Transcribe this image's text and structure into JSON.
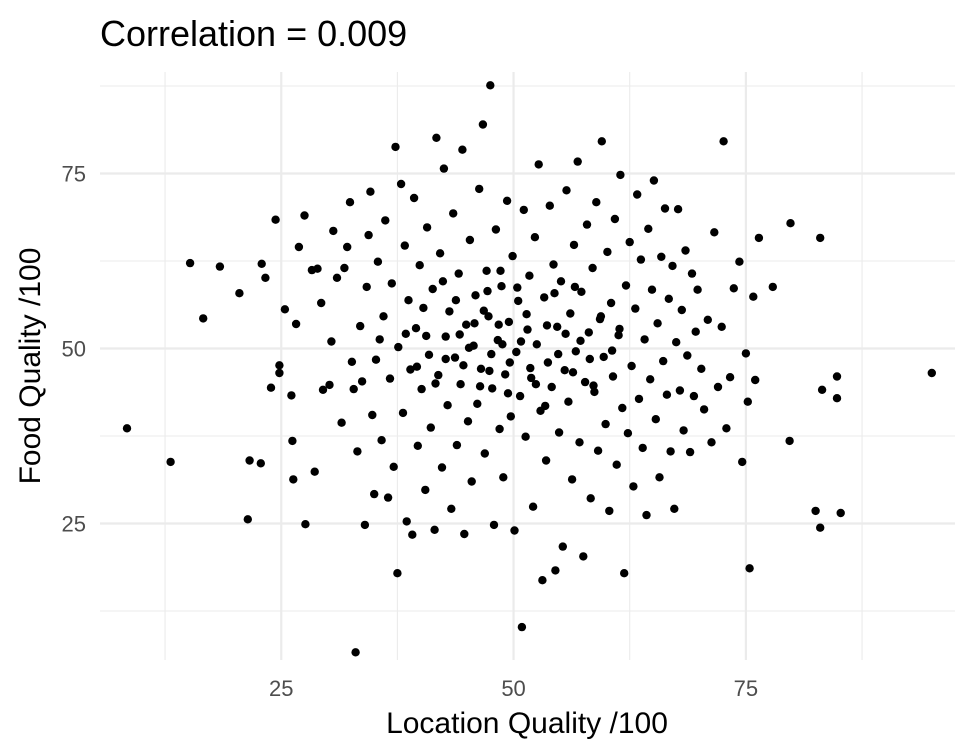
{
  "chart_data": {
    "type": "scatter",
    "title": "Correlation = 0.009",
    "xlabel": "Location Quality /100",
    "ylabel": "Food Quality /100",
    "xlim": [
      5.5,
      97.5
    ],
    "ylim": [
      5.5,
      89.5
    ],
    "x_ticks": [
      25,
      50,
      75
    ],
    "y_ticks": [
      25,
      50,
      75
    ],
    "x_tick_labels": [
      "25",
      "50",
      "75"
    ],
    "y_tick_labels": [
      "25",
      "50",
      "75"
    ],
    "x_minor": [
      12.5,
      37.5,
      62.5,
      87.5
    ],
    "y_minor": [
      12.5,
      37.5,
      62.5,
      87.5
    ],
    "grid": true,
    "theme": "minimal",
    "point_color": "#000000",
    "grid_color": "#ebebeb",
    "series": [
      {
        "points": [
          [
            8.4,
            38.6
          ],
          [
            13.1,
            33.8
          ],
          [
            15.2,
            62.2
          ],
          [
            16.6,
            54.3
          ],
          [
            18.4,
            61.7
          ],
          [
            20.5,
            57.9
          ],
          [
            21.4,
            25.6
          ],
          [
            21.6,
            34.0
          ],
          [
            22.9,
            62.1
          ],
          [
            22.8,
            33.6
          ],
          [
            23.3,
            60.1
          ],
          [
            23.9,
            44.4
          ],
          [
            24.4,
            68.4
          ],
          [
            24.8,
            47.6
          ],
          [
            24.8,
            46.5
          ],
          [
            25.4,
            55.6
          ],
          [
            26.1,
            43.3
          ],
          [
            26.2,
            36.8
          ],
          [
            26.3,
            31.3
          ],
          [
            26.6,
            53.5
          ],
          [
            26.9,
            64.5
          ],
          [
            27.5,
            69.0
          ],
          [
            27.6,
            24.9
          ],
          [
            28.3,
            61.2
          ],
          [
            28.6,
            32.4
          ],
          [
            28.9,
            61.4
          ],
          [
            29.3,
            56.5
          ],
          [
            29.5,
            44.1
          ],
          [
            30.2,
            44.8
          ],
          [
            30.4,
            51.0
          ],
          [
            30.6,
            66.8
          ],
          [
            31.0,
            60.1
          ],
          [
            31.5,
            39.4
          ],
          [
            31.8,
            61.5
          ],
          [
            32.1,
            64.5
          ],
          [
            32.4,
            70.9
          ],
          [
            32.6,
            48.1
          ],
          [
            32.8,
            44.2
          ],
          [
            33.0,
            6.6
          ],
          [
            33.2,
            35.3
          ],
          [
            33.5,
            53.2
          ],
          [
            33.7,
            45.3
          ],
          [
            34.0,
            24.8
          ],
          [
            34.2,
            58.8
          ],
          [
            34.4,
            66.2
          ],
          [
            34.6,
            72.4
          ],
          [
            34.8,
            40.5
          ],
          [
            35.0,
            29.2
          ],
          [
            35.2,
            48.4
          ],
          [
            35.4,
            62.4
          ],
          [
            35.6,
            51.3
          ],
          [
            35.8,
            36.9
          ],
          [
            36.0,
            54.6
          ],
          [
            36.2,
            68.3
          ],
          [
            36.5,
            28.7
          ],
          [
            36.7,
            45.7
          ],
          [
            36.9,
            59.3
          ],
          [
            37.1,
            33.1
          ],
          [
            37.3,
            78.8
          ],
          [
            37.5,
            17.9
          ],
          [
            37.6,
            50.2
          ],
          [
            37.9,
            73.5
          ],
          [
            38.1,
            40.8
          ],
          [
            38.3,
            64.7
          ],
          [
            38.5,
            25.3
          ],
          [
            38.7,
            56.9
          ],
          [
            38.9,
            47.0
          ],
          [
            39.1,
            23.4
          ],
          [
            39.3,
            71.5
          ],
          [
            39.5,
            52.9
          ],
          [
            39.7,
            36.1
          ],
          [
            39.9,
            61.9
          ],
          [
            40.1,
            44.2
          ],
          [
            40.3,
            55.8
          ],
          [
            40.5,
            29.8
          ],
          [
            40.7,
            67.3
          ],
          [
            40.9,
            49.1
          ],
          [
            41.1,
            38.7
          ],
          [
            41.3,
            58.5
          ],
          [
            41.5,
            24.1
          ],
          [
            41.7,
            80.1
          ],
          [
            41.9,
            46.2
          ],
          [
            42.1,
            63.6
          ],
          [
            42.3,
            33.0
          ],
          [
            42.5,
            75.7
          ],
          [
            42.7,
            51.7
          ],
          [
            42.9,
            41.9
          ],
          [
            43.1,
            55.3
          ],
          [
            43.3,
            27.1
          ],
          [
            43.5,
            69.3
          ],
          [
            43.7,
            48.7
          ],
          [
            43.9,
            36.2
          ],
          [
            44.1,
            60.7
          ],
          [
            44.3,
            44.9
          ],
          [
            44.5,
            78.4
          ],
          [
            44.7,
            23.5
          ],
          [
            44.9,
            53.4
          ],
          [
            45.1,
            39.6
          ],
          [
            45.3,
            65.5
          ],
          [
            45.5,
            31.0
          ],
          [
            45.7,
            50.4
          ],
          [
            45.9,
            57.6
          ],
          [
            46.1,
            42.1
          ],
          [
            46.3,
            72.8
          ],
          [
            46.5,
            47.1
          ],
          [
            46.7,
            82.0
          ],
          [
            46.9,
            35.0
          ],
          [
            47.1,
            61.1
          ],
          [
            47.3,
            54.6
          ],
          [
            47.5,
            87.6
          ],
          [
            47.7,
            44.3
          ],
          [
            47.9,
            24.8
          ],
          [
            48.1,
            67.0
          ],
          [
            48.3,
            51.2
          ],
          [
            48.5,
            38.5
          ],
          [
            48.7,
            58.9
          ],
          [
            48.9,
            31.6
          ],
          [
            49.1,
            46.3
          ],
          [
            49.3,
            71.1
          ],
          [
            49.5,
            53.8
          ],
          [
            49.7,
            40.3
          ],
          [
            49.9,
            63.2
          ],
          [
            50.1,
            24.0
          ],
          [
            50.3,
            49.5
          ],
          [
            50.5,
            56.8
          ],
          [
            50.7,
            43.2
          ],
          [
            50.9,
            10.2
          ],
          [
            51.1,
            69.8
          ],
          [
            51.3,
            37.4
          ],
          [
            51.5,
            52.7
          ],
          [
            51.7,
            60.4
          ],
          [
            51.9,
            45.8
          ],
          [
            52.1,
            27.4
          ],
          [
            52.3,
            65.9
          ],
          [
            52.5,
            50.6
          ],
          [
            52.7,
            76.3
          ],
          [
            52.9,
            41.1
          ],
          [
            53.1,
            16.9
          ],
          [
            53.3,
            57.3
          ],
          [
            53.5,
            34.0
          ],
          [
            53.7,
            48.0
          ],
          [
            53.9,
            70.4
          ],
          [
            54.1,
            44.5
          ],
          [
            54.3,
            62.0
          ],
          [
            54.5,
            18.3
          ],
          [
            54.7,
            53.1
          ],
          [
            54.9,
            38.0
          ],
          [
            55.1,
            59.6
          ],
          [
            55.3,
            21.7
          ],
          [
            55.5,
            46.9
          ],
          [
            55.7,
            72.6
          ],
          [
            55.9,
            42.4
          ],
          [
            56.1,
            55.0
          ],
          [
            56.3,
            31.3
          ],
          [
            56.5,
            64.8
          ],
          [
            56.7,
            49.6
          ],
          [
            56.9,
            76.7
          ],
          [
            57.1,
            36.6
          ],
          [
            57.3,
            58.1
          ],
          [
            57.5,
            20.3
          ],
          [
            57.7,
            45.2
          ],
          [
            57.9,
            67.7
          ],
          [
            58.1,
            52.3
          ],
          [
            58.3,
            28.6
          ],
          [
            58.5,
            61.5
          ],
          [
            58.7,
            43.8
          ],
          [
            58.9,
            70.9
          ],
          [
            59.1,
            35.4
          ],
          [
            59.3,
            54.2
          ],
          [
            59.5,
            79.6
          ],
          [
            59.7,
            48.8
          ],
          [
            59.9,
            39.2
          ],
          [
            60.1,
            63.8
          ],
          [
            60.3,
            26.8
          ],
          [
            60.5,
            56.5
          ],
          [
            60.7,
            46.0
          ],
          [
            60.9,
            68.5
          ],
          [
            61.1,
            33.4
          ],
          [
            61.3,
            51.9
          ],
          [
            61.5,
            74.8
          ],
          [
            61.7,
            41.5
          ],
          [
            61.9,
            17.9
          ],
          [
            62.1,
            59.0
          ],
          [
            62.3,
            37.9
          ],
          [
            62.5,
            65.2
          ],
          [
            62.7,
            47.5
          ],
          [
            62.9,
            30.3
          ],
          [
            63.1,
            55.7
          ],
          [
            63.3,
            72.0
          ],
          [
            63.5,
            42.8
          ],
          [
            63.7,
            62.7
          ],
          [
            63.9,
            35.8
          ],
          [
            64.1,
            51.3
          ],
          [
            64.3,
            26.2
          ],
          [
            64.5,
            67.1
          ],
          [
            64.7,
            45.6
          ],
          [
            64.9,
            58.4
          ],
          [
            65.1,
            74.0
          ],
          [
            65.3,
            39.9
          ],
          [
            65.5,
            53.6
          ],
          [
            65.7,
            31.6
          ],
          [
            65.9,
            63.1
          ],
          [
            66.1,
            48.2
          ],
          [
            66.3,
            70.0
          ],
          [
            66.5,
            43.4
          ],
          [
            66.7,
            57.1
          ],
          [
            66.9,
            35.3
          ],
          [
            67.1,
            61.8
          ],
          [
            67.3,
            27.1
          ],
          [
            67.5,
            50.9
          ],
          [
            67.7,
            69.9
          ],
          [
            67.9,
            44.0
          ],
          [
            68.1,
            55.5
          ],
          [
            68.3,
            38.3
          ],
          [
            68.5,
            64.0
          ],
          [
            68.7,
            49.0
          ],
          [
            69.0,
            35.2
          ],
          [
            69.2,
            60.7
          ],
          [
            69.4,
            43.2
          ],
          [
            69.6,
            52.4
          ],
          [
            69.8,
            58.4
          ],
          [
            70.2,
            47.1
          ],
          [
            70.5,
            41.3
          ],
          [
            70.9,
            54.1
          ],
          [
            71.3,
            36.6
          ],
          [
            71.6,
            66.6
          ],
          [
            72.0,
            44.5
          ],
          [
            72.4,
            53.1
          ],
          [
            72.6,
            79.6
          ],
          [
            72.9,
            38.6
          ],
          [
            73.3,
            45.9
          ],
          [
            73.7,
            58.6
          ],
          [
            74.3,
            62.4
          ],
          [
            74.6,
            33.8
          ],
          [
            75.0,
            49.3
          ],
          [
            75.2,
            42.4
          ],
          [
            75.4,
            18.6
          ],
          [
            75.8,
            57.4
          ],
          [
            76.0,
            45.5
          ],
          [
            76.4,
            65.8
          ],
          [
            77.9,
            58.8
          ],
          [
            79.7,
            36.8
          ],
          [
            79.8,
            67.9
          ],
          [
            82.5,
            26.8
          ],
          [
            83.0,
            65.8
          ],
          [
            83.0,
            24.4
          ],
          [
            83.2,
            44.1
          ],
          [
            84.8,
            42.9
          ],
          [
            84.8,
            46.0
          ],
          [
            85.2,
            26.5
          ],
          [
            95.0,
            46.5
          ],
          [
            42.7,
            48.5
          ],
          [
            44.2,
            52.0
          ],
          [
            46.8,
            55.4
          ],
          [
            47.6,
            49.2
          ],
          [
            48.4,
            53.4
          ],
          [
            49.6,
            48.0
          ],
          [
            45.2,
            50.1
          ],
          [
            43.8,
            56.9
          ],
          [
            50.8,
            51.0
          ],
          [
            51.8,
            47.2
          ],
          [
            53.6,
            53.3
          ],
          [
            54.8,
            49.2
          ],
          [
            55.6,
            52.1
          ],
          [
            56.4,
            46.6
          ],
          [
            57.2,
            51.1
          ],
          [
            58.2,
            48.5
          ],
          [
            59.4,
            54.6
          ],
          [
            60.6,
            49.7
          ],
          [
            61.4,
            52.8
          ],
          [
            40.6,
            51.8
          ],
          [
            39.6,
            47.4
          ],
          [
            38.4,
            52.1
          ],
          [
            41.6,
            45.0
          ],
          [
            42.4,
            59.6
          ],
          [
            47.2,
            58.2
          ],
          [
            48.6,
            61.1
          ],
          [
            46.4,
            44.6
          ],
          [
            49.4,
            43.6
          ],
          [
            52.4,
            44.9
          ],
          [
            53.4,
            41.8
          ],
          [
            54.4,
            57.9
          ],
          [
            56.6,
            58.8
          ],
          [
            58.6,
            44.7
          ],
          [
            50.4,
            58.7
          ],
          [
            44.6,
            47.6
          ],
          [
            45.8,
            53.6
          ],
          [
            47.4,
            46.8
          ],
          [
            48.8,
            50.6
          ],
          [
            51.4,
            54.9
          ]
        ]
      }
    ]
  }
}
